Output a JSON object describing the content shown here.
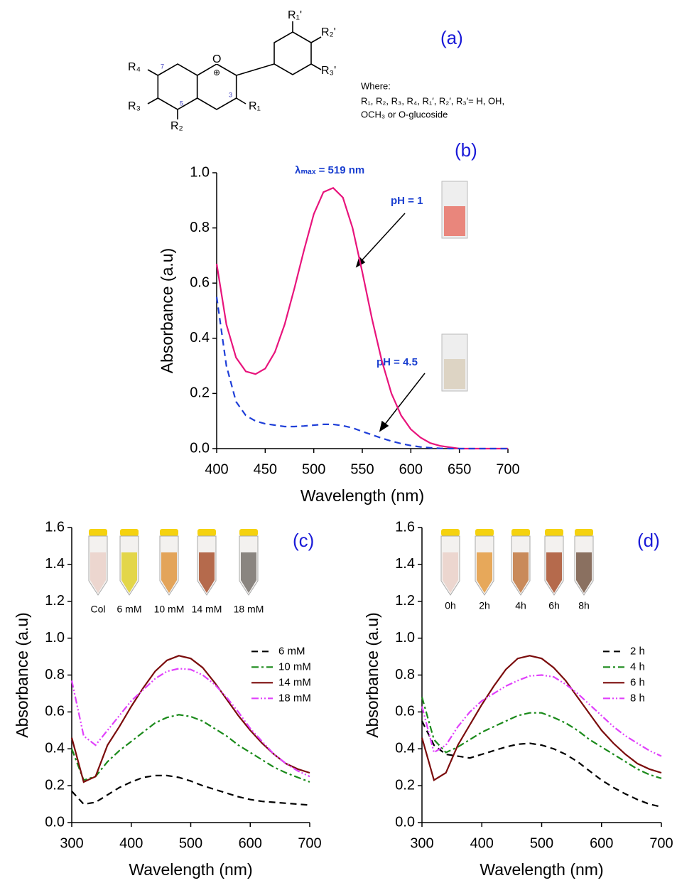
{
  "structure": {
    "panel_label": "(a)",
    "labels": [
      "R₁'",
      "R₂'",
      "R₃'",
      "R₄",
      "R₃",
      "R₂",
      "R₁",
      "O",
      "⊕",
      "7",
      "5",
      "3"
    ],
    "where": [
      "Where:",
      "R₁, R₂, R₃, R₄, R₁′, R₂′, R₃′= H, OH,",
      "OCH₃ or O-glucoside"
    ]
  },
  "chart_data": [
    {
      "type": "line",
      "panel_label": "(b)",
      "annotation": "λₘₐₓ = 519 nm",
      "xlabel": "Wavelength (nm)",
      "ylabel": "Absorbance (a.u)",
      "x": [
        400,
        410,
        420,
        430,
        440,
        450,
        460,
        470,
        480,
        490,
        500,
        510,
        520,
        530,
        540,
        550,
        560,
        570,
        580,
        590,
        600,
        610,
        620,
        630,
        640,
        650,
        660,
        670,
        680,
        690,
        700
      ],
      "series": [
        {
          "name": "pH = 1",
          "color": "#e8147c",
          "dash": "solid",
          "values": [
            0.67,
            0.45,
            0.33,
            0.28,
            0.27,
            0.29,
            0.35,
            0.45,
            0.58,
            0.72,
            0.85,
            0.93,
            0.945,
            0.91,
            0.8,
            0.64,
            0.47,
            0.32,
            0.2,
            0.12,
            0.07,
            0.04,
            0.02,
            0.01,
            0.005,
            0,
            0,
            0,
            0,
            0,
            0
          ]
        },
        {
          "name": "pH = 4.5",
          "color": "#1f3fd8",
          "dash": "dashed",
          "values": [
            0.55,
            0.3,
            0.17,
            0.12,
            0.1,
            0.09,
            0.085,
            0.08,
            0.08,
            0.082,
            0.085,
            0.088,
            0.088,
            0.083,
            0.075,
            0.062,
            0.05,
            0.038,
            0.027,
            0.018,
            0.011,
            0.006,
            0.003,
            0.001,
            0,
            0,
            0,
            0,
            0,
            0,
            0
          ]
        }
      ],
      "xlim": [
        400,
        700
      ],
      "xticks": [
        400,
        450,
        500,
        550,
        600,
        650,
        700
      ],
      "ylim": [
        0,
        1.0
      ],
      "yticks": [
        {
          "value": 0,
          "label": "0.0"
        },
        0.2,
        0.4,
        0.6,
        0.8,
        {
          "value": 1,
          "label": "1.0"
        }
      ],
      "inset_colors": [
        "#e9867c",
        "#ddd4c4"
      ]
    },
    {
      "type": "line",
      "panel_label": "(c)",
      "xlabel": "Wavelength (nm)",
      "ylabel": "Absorbance (a.u)",
      "legend": "center right",
      "x": [
        300,
        320,
        340,
        360,
        380,
        400,
        420,
        440,
        460,
        480,
        500,
        520,
        540,
        560,
        580,
        600,
        620,
        640,
        660,
        680,
        700
      ],
      "series": [
        {
          "name": "6 mM",
          "color": "#000000",
          "dash": "dashed",
          "values": [
            0.17,
            0.1,
            0.11,
            0.15,
            0.19,
            0.22,
            0.245,
            0.255,
            0.255,
            0.245,
            0.225,
            0.2,
            0.18,
            0.16,
            0.14,
            0.125,
            0.115,
            0.11,
            0.105,
            0.1,
            0.095
          ]
        },
        {
          "name": "10 mM",
          "color": "#1a8a1a",
          "dash": "dashdot",
          "values": [
            0.4,
            0.23,
            0.25,
            0.33,
            0.39,
            0.44,
            0.49,
            0.54,
            0.57,
            0.585,
            0.575,
            0.55,
            0.51,
            0.47,
            0.42,
            0.38,
            0.34,
            0.3,
            0.27,
            0.245,
            0.22
          ]
        },
        {
          "name": "14 mM",
          "color": "#7b0c0c",
          "dash": "solid",
          "values": [
            0.46,
            0.22,
            0.25,
            0.42,
            0.52,
            0.63,
            0.73,
            0.82,
            0.88,
            0.905,
            0.89,
            0.84,
            0.76,
            0.67,
            0.58,
            0.5,
            0.43,
            0.37,
            0.32,
            0.29,
            0.27
          ]
        },
        {
          "name": "18 mM",
          "color": "#e040fb",
          "dash": "dashdotdot",
          "values": [
            0.77,
            0.47,
            0.42,
            0.5,
            0.58,
            0.66,
            0.72,
            0.78,
            0.82,
            0.835,
            0.83,
            0.8,
            0.75,
            0.68,
            0.6,
            0.51,
            0.44,
            0.37,
            0.32,
            0.28,
            0.25
          ]
        }
      ],
      "xlim": [
        300,
        700
      ],
      "xticks": [
        300,
        400,
        500,
        600,
        700
      ],
      "ylim": [
        0,
        1.6
      ],
      "yticks": [
        {
          "value": 0,
          "label": "0.0"
        },
        0.2,
        0.4,
        0.6,
        0.8,
        {
          "value": 1,
          "label": "1.0"
        },
        1.2,
        1.4,
        1.6
      ],
      "inset_labels": [
        "Col",
        "6 mM",
        "10 mM",
        "14 mM",
        "18 mM"
      ],
      "inset_colors": [
        "#ecd6cf",
        "#e3d64a",
        "#e3a45a",
        "#b56a4c",
        "#8a8580"
      ]
    },
    {
      "type": "line",
      "panel_label": "(d)",
      "xlabel": "Wavelength (nm)",
      "ylabel": "Absorbance (a.u)",
      "legend": "center right",
      "x": [
        300,
        320,
        340,
        360,
        380,
        400,
        420,
        440,
        460,
        480,
        500,
        520,
        540,
        560,
        580,
        600,
        620,
        640,
        660,
        680,
        700
      ],
      "series": [
        {
          "name": "2 h",
          "color": "#000000",
          "dash": "dashed",
          "values": [
            0.55,
            0.42,
            0.37,
            0.36,
            0.35,
            0.37,
            0.39,
            0.41,
            0.425,
            0.43,
            0.42,
            0.4,
            0.37,
            0.33,
            0.28,
            0.23,
            0.19,
            0.155,
            0.125,
            0.1,
            0.085
          ]
        },
        {
          "name": "4 h",
          "color": "#1a8a1a",
          "dash": "dashdot",
          "values": [
            0.68,
            0.45,
            0.38,
            0.41,
            0.45,
            0.49,
            0.52,
            0.55,
            0.58,
            0.595,
            0.595,
            0.57,
            0.54,
            0.5,
            0.45,
            0.41,
            0.37,
            0.33,
            0.29,
            0.26,
            0.24
          ]
        },
        {
          "name": "6 h",
          "color": "#7b0c0c",
          "dash": "solid",
          "values": [
            0.46,
            0.23,
            0.27,
            0.42,
            0.53,
            0.64,
            0.74,
            0.83,
            0.89,
            0.905,
            0.89,
            0.84,
            0.77,
            0.68,
            0.59,
            0.5,
            0.43,
            0.37,
            0.32,
            0.29,
            0.27
          ]
        },
        {
          "name": "8 h",
          "color": "#e040fb",
          "dash": "dashdotdot",
          "values": [
            0.63,
            0.38,
            0.42,
            0.52,
            0.6,
            0.66,
            0.7,
            0.74,
            0.77,
            0.795,
            0.8,
            0.79,
            0.75,
            0.7,
            0.64,
            0.58,
            0.52,
            0.47,
            0.43,
            0.39,
            0.36
          ]
        }
      ],
      "xlim": [
        300,
        700
      ],
      "xticks": [
        300,
        400,
        500,
        600,
        700
      ],
      "ylim": [
        0,
        1.6
      ],
      "yticks": [
        {
          "value": 0,
          "label": "0.0"
        },
        0.2,
        0.4,
        0.6,
        0.8,
        {
          "value": 1,
          "label": "1.0"
        },
        1.2,
        1.4,
        1.6
      ],
      "inset_labels": [
        "0h",
        "2h",
        "4h",
        "6h",
        "8h"
      ],
      "inset_colors": [
        "#ecd6cf",
        "#e7a85a",
        "#c98a5a",
        "#b56a4c",
        "#8a7060"
      ]
    }
  ]
}
